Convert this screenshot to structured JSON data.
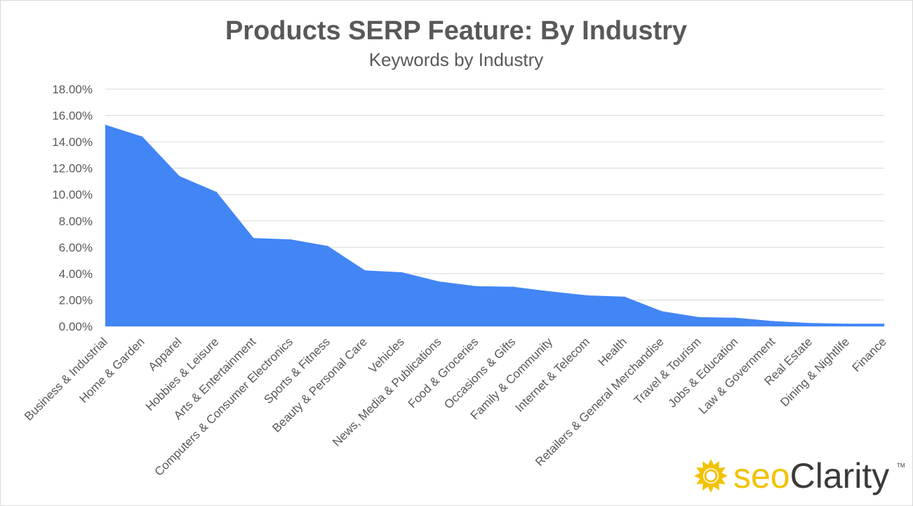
{
  "chart_data": {
    "type": "area",
    "title": "Products SERP Feature: By Industry",
    "subtitle": "Keywords by Industry",
    "xlabel": "",
    "ylabel": "",
    "ylim": [
      0,
      18
    ],
    "y_tick_format": "percent_2dp",
    "yticks": [
      "0.00%",
      "2.00%",
      "4.00%",
      "6.00%",
      "8.00%",
      "10.00%",
      "12.00%",
      "14.00%",
      "16.00%",
      "18.00%"
    ],
    "grid": true,
    "legend": "none",
    "color": "#4285f4",
    "categories": [
      "Business & Industrial",
      "Home & Garden",
      "Apparel",
      "Hobbies & Leisure",
      "Arts & Entertainment",
      "Computers & Consumer Electronics",
      "Sports & Fitness",
      "Beauty & Personal Care",
      "Vehicles",
      "News, Media & Publications",
      "Food & Groceries",
      "Occasions & Gifts",
      "Family & Community",
      "Internet & Telecom",
      "Health",
      "Retailers & General Merchandise",
      "Travel & Tourism",
      "Jobs & Education",
      "Law & Government",
      "Real Estate",
      "Dining & Nightlife",
      "Finance"
    ],
    "values": [
      15.3,
      14.4,
      11.4,
      10.2,
      6.7,
      6.6,
      6.1,
      4.25,
      4.1,
      3.4,
      3.05,
      3.0,
      2.65,
      2.35,
      2.25,
      1.15,
      0.7,
      0.65,
      0.4,
      0.25,
      0.2,
      0.2
    ]
  },
  "branding": {
    "logo_prefix": "seo",
    "logo_suffix": "Clarity",
    "trademark": "TM",
    "logo_color": "#f2c200",
    "text_color": "#3a3a3a"
  }
}
